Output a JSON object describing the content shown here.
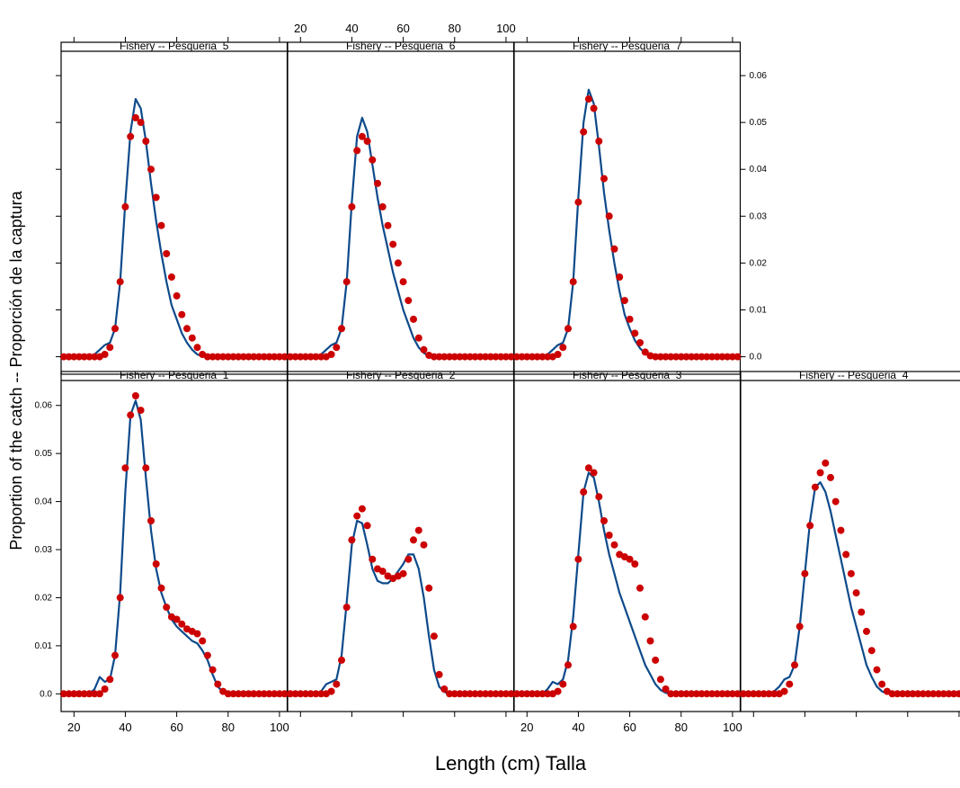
{
  "chart_data": {
    "type": "scatter",
    "layout": "lattice",
    "xlabel": "Length (cm) Talla",
    "ylabel": "Proportion of the catch -- Proporción de la captura",
    "xlim": [
      15,
      103
    ],
    "ylim": [
      -0.002,
      0.065
    ],
    "x_ticks": [
      20,
      40,
      60,
      80,
      100
    ],
    "y_ticks": [
      0.0,
      0.01,
      0.02,
      0.03,
      0.04,
      0.05,
      0.06
    ],
    "y_tick_labels": [
      "0.0",
      "0.01",
      "0.02",
      "0.03",
      "0.04",
      "0.05",
      "0.06"
    ],
    "observed_color": "#cc0000",
    "fitted_color": "#0d4a8a",
    "x": [
      16,
      18,
      20,
      22,
      24,
      26,
      28,
      30,
      32,
      34,
      36,
      38,
      40,
      42,
      44,
      46,
      48,
      50,
      52,
      54,
      56,
      58,
      60,
      62,
      64,
      66,
      68,
      70,
      72,
      74,
      76,
      78,
      80,
      82,
      84,
      86,
      88,
      90,
      92,
      94,
      96,
      98,
      100,
      102
    ],
    "panels": [
      {
        "title": "Fishery -- Pesqueria_1",
        "observed": [
          0,
          0,
          0,
          0,
          0,
          0,
          0,
          0,
          0.001,
          0.003,
          0.008,
          0.02,
          0.047,
          0.058,
          0.062,
          0.059,
          0.047,
          0.036,
          0.027,
          0.022,
          0.018,
          0.016,
          0.0155,
          0.0145,
          0.0135,
          0.013,
          0.0125,
          0.011,
          0.008,
          0.005,
          0.002,
          0.0005,
          0,
          0,
          0,
          0,
          0,
          0,
          0,
          0,
          0,
          0,
          0,
          0
        ],
        "fitted": [
          0,
          0,
          0,
          0,
          0,
          0,
          0.001,
          0.0035,
          0.0025,
          0.003,
          0.008,
          0.021,
          0.042,
          0.058,
          0.061,
          0.057,
          0.045,
          0.034,
          0.026,
          0.021,
          0.018,
          0.0155,
          0.014,
          0.013,
          0.012,
          0.011,
          0.0105,
          0.009,
          0.007,
          0.004,
          0.0015,
          0.0004,
          0,
          0,
          0,
          0,
          0,
          0,
          0,
          0,
          0,
          0,
          0,
          0
        ]
      },
      {
        "title": "Fishery -- Pesqueria_2",
        "observed": [
          0,
          0,
          0,
          0,
          0,
          0,
          0,
          0,
          0.0005,
          0.002,
          0.007,
          0.018,
          0.032,
          0.037,
          0.0385,
          0.035,
          0.028,
          0.026,
          0.0255,
          0.0245,
          0.024,
          0.0245,
          0.025,
          0.028,
          0.032,
          0.034,
          0.031,
          0.022,
          0.012,
          0.004,
          0.001,
          0,
          0,
          0,
          0,
          0,
          0,
          0,
          0,
          0,
          0,
          0,
          0,
          0
        ],
        "fitted": [
          0,
          0,
          0,
          0,
          0,
          0,
          0.0005,
          0.002,
          0.0025,
          0.003,
          0.008,
          0.019,
          0.031,
          0.036,
          0.0355,
          0.031,
          0.026,
          0.0235,
          0.023,
          0.023,
          0.024,
          0.0255,
          0.027,
          0.029,
          0.029,
          0.026,
          0.02,
          0.012,
          0.005,
          0.0015,
          0.0004,
          0,
          0,
          0,
          0,
          0,
          0,
          0,
          0,
          0,
          0,
          0,
          0,
          0
        ]
      },
      {
        "title": "Fishery -- Pesqueria_3",
        "observed": [
          0,
          0,
          0,
          0,
          0,
          0,
          0,
          0,
          0.0005,
          0.002,
          0.006,
          0.014,
          0.028,
          0.042,
          0.047,
          0.046,
          0.041,
          0.036,
          0.033,
          0.031,
          0.029,
          0.0285,
          0.028,
          0.027,
          0.022,
          0.016,
          0.011,
          0.007,
          0.003,
          0.001,
          0,
          0,
          0,
          0,
          0,
          0,
          0,
          0,
          0,
          0,
          0,
          0,
          0,
          0
        ],
        "fitted": [
          0,
          0,
          0,
          0,
          0,
          0,
          0.001,
          0.0025,
          0.002,
          0.003,
          0.007,
          0.016,
          0.029,
          0.042,
          0.046,
          0.045,
          0.04,
          0.034,
          0.029,
          0.025,
          0.021,
          0.018,
          0.015,
          0.012,
          0.009,
          0.006,
          0.004,
          0.002,
          0.0008,
          0.0002,
          0,
          0,
          0,
          0,
          0,
          0,
          0,
          0,
          0,
          0,
          0,
          0,
          0,
          0
        ]
      },
      {
        "title": "Fishery -- Pesqueria_4",
        "observed": [
          0,
          0,
          0,
          0,
          0,
          0,
          0,
          0,
          0.0005,
          0.002,
          0.006,
          0.014,
          0.025,
          0.035,
          0.043,
          0.046,
          0.048,
          0.045,
          0.04,
          0.034,
          0.029,
          0.025,
          0.021,
          0.017,
          0.013,
          0.009,
          0.005,
          0.002,
          0.0005,
          0,
          0,
          0,
          0,
          0,
          0,
          0,
          0,
          0,
          0,
          0,
          0,
          0,
          0,
          0
        ],
        "fitted": [
          0,
          0,
          0,
          0,
          0,
          0,
          0.0005,
          0.0015,
          0.003,
          0.0035,
          0.006,
          0.014,
          0.025,
          0.036,
          0.043,
          0.044,
          0.042,
          0.038,
          0.033,
          0.028,
          0.023,
          0.018,
          0.014,
          0.01,
          0.006,
          0.0035,
          0.0015,
          0.0005,
          0.0001,
          0,
          0,
          0,
          0,
          0,
          0,
          0,
          0,
          0,
          0,
          0,
          0,
          0,
          0,
          0
        ]
      },
      {
        "title": "Fishery -- Pesqueria_5",
        "observed": [
          0,
          0,
          0,
          0,
          0,
          0,
          0,
          0,
          0.0005,
          0.002,
          0.006,
          0.016,
          0.032,
          0.047,
          0.051,
          0.05,
          0.046,
          0.04,
          0.034,
          0.028,
          0.022,
          0.017,
          0.013,
          0.009,
          0.006,
          0.004,
          0.002,
          0.0005,
          0,
          0,
          0,
          0,
          0,
          0,
          0,
          0,
          0,
          0,
          0,
          0,
          0,
          0,
          0,
          0
        ],
        "fitted": [
          0,
          0,
          0,
          0,
          0,
          0,
          0.0005,
          0.0015,
          0.0025,
          0.003,
          0.006,
          0.016,
          0.033,
          0.048,
          0.055,
          0.053,
          0.046,
          0.037,
          0.029,
          0.022,
          0.016,
          0.011,
          0.008,
          0.005,
          0.003,
          0.0015,
          0.0005,
          0.0001,
          0,
          0,
          0,
          0,
          0,
          0,
          0,
          0,
          0,
          0,
          0,
          0,
          0,
          0,
          0,
          0
        ]
      },
      {
        "title": "Fishery -- Pesqueria_6",
        "observed": [
          0,
          0,
          0,
          0,
          0,
          0,
          0,
          0,
          0.0005,
          0.002,
          0.006,
          0.016,
          0.032,
          0.044,
          0.047,
          0.046,
          0.042,
          0.037,
          0.032,
          0.028,
          0.024,
          0.02,
          0.016,
          0.012,
          0.008,
          0.004,
          0.0015,
          0.0003,
          0,
          0,
          0,
          0,
          0,
          0,
          0,
          0,
          0,
          0,
          0,
          0,
          0,
          0,
          0,
          0
        ],
        "fitted": [
          0,
          0,
          0,
          0,
          0,
          0,
          0.0005,
          0.0015,
          0.0025,
          0.003,
          0.006,
          0.016,
          0.033,
          0.047,
          0.051,
          0.048,
          0.041,
          0.034,
          0.028,
          0.023,
          0.018,
          0.014,
          0.01,
          0.007,
          0.004,
          0.002,
          0.0008,
          0.0002,
          0,
          0,
          0,
          0,
          0,
          0,
          0,
          0,
          0,
          0,
          0,
          0,
          0,
          0,
          0,
          0
        ]
      },
      {
        "title": "Fishery -- Pesqueria_7",
        "observed": [
          0,
          0,
          0,
          0,
          0,
          0,
          0,
          0,
          0.0005,
          0.002,
          0.006,
          0.016,
          0.033,
          0.048,
          0.055,
          0.053,
          0.046,
          0.038,
          0.03,
          0.023,
          0.017,
          0.012,
          0.008,
          0.005,
          0.003,
          0.001,
          0.0002,
          0,
          0,
          0,
          0,
          0,
          0,
          0,
          0,
          0,
          0,
          0,
          0,
          0,
          0,
          0,
          0,
          0
        ],
        "fitted": [
          0,
          0,
          0,
          0,
          0,
          0,
          0.0005,
          0.0015,
          0.0025,
          0.003,
          0.006,
          0.016,
          0.034,
          0.05,
          0.057,
          0.054,
          0.045,
          0.035,
          0.027,
          0.02,
          0.014,
          0.009,
          0.006,
          0.0035,
          0.0018,
          0.0007,
          0.0002,
          0,
          0,
          0,
          0,
          0,
          0,
          0,
          0,
          0,
          0,
          0,
          0,
          0,
          0,
          0,
          0,
          0
        ]
      }
    ]
  }
}
